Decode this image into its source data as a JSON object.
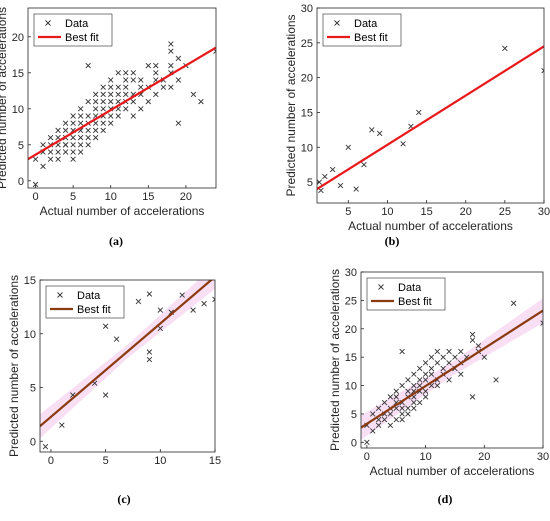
{
  "chart_data": [
    {
      "type": "scatter",
      "panel_label": "(a)",
      "xlabel": "Actual number of accelerations",
      "ylabel": "Predicted number of accelerations",
      "xlim": [
        -1,
        24
      ],
      "ylim": [
        -1,
        24
      ],
      "xticks": [
        0,
        5,
        10,
        15,
        20
      ],
      "yticks": [
        0,
        5,
        10,
        15,
        20
      ],
      "legend": {
        "position": "top-left",
        "entries": [
          "Data",
          "Best fit"
        ]
      },
      "line_color": "#e8191b",
      "band": false,
      "fit": {
        "x": [
          -1,
          24
        ],
        "y": [
          3.0,
          18.5
        ]
      },
      "series": [
        {
          "name": "Data",
          "marker": "x",
          "color": "#333333",
          "x": [
            0,
            0,
            1,
            1,
            1,
            2,
            2,
            2,
            2,
            3,
            3,
            3,
            3,
            3,
            4,
            4,
            4,
            4,
            4,
            4,
            5,
            5,
            5,
            5,
            5,
            5,
            5,
            6,
            6,
            6,
            6,
            6,
            6,
            6,
            7,
            7,
            7,
            7,
            7,
            7,
            7,
            8,
            8,
            8,
            8,
            8,
            8,
            8,
            9,
            9,
            9,
            9,
            9,
            9,
            9,
            10,
            10,
            10,
            10,
            10,
            10,
            10,
            11,
            11,
            11,
            11,
            11,
            11,
            12,
            12,
            12,
            12,
            12,
            12,
            13,
            13,
            13,
            13,
            13,
            14,
            14,
            14,
            14,
            15,
            15,
            15,
            16,
            16,
            16,
            16,
            17,
            17,
            18,
            18,
            18,
            18,
            18,
            19,
            19,
            19,
            20,
            21,
            22,
            24
          ],
          "y": [
            -0.5,
            3,
            2,
            4,
            5,
            3,
            4,
            6,
            5,
            4,
            5,
            6,
            7,
            3,
            5,
            6,
            7,
            4,
            5,
            8,
            6,
            7,
            5,
            9,
            4,
            8,
            3,
            5,
            7,
            8,
            10,
            6,
            4,
            9,
            6,
            9,
            7,
            11,
            5,
            8,
            16,
            7,
            10,
            8,
            12,
            6,
            9,
            11,
            8,
            11,
            9,
            13,
            10,
            7,
            12,
            9,
            12,
            10,
            14,
            11,
            8,
            13,
            10,
            13,
            11,
            15,
            9,
            12,
            11,
            14,
            10,
            12,
            15,
            13,
            12,
            14,
            11,
            9,
            15,
            13,
            10,
            14,
            12,
            11,
            13,
            16,
            14,
            12,
            16,
            15,
            13,
            14,
            16,
            19,
            18,
            15,
            13,
            8,
            17,
            14,
            16,
            12,
            11,
            18
          ]
        }
      ]
    },
    {
      "type": "scatter",
      "panel_label": "(b)",
      "xlabel": "Actual number of accelerations",
      "ylabel": "Predicted number of accelerations",
      "xlim": [
        1,
        30
      ],
      "ylim": [
        2,
        30
      ],
      "xticks": [
        5,
        10,
        15,
        20,
        25,
        30
      ],
      "yticks": [
        5,
        10,
        15,
        20,
        25,
        30
      ],
      "legend": {
        "position": "top-left",
        "entries": [
          "Data",
          "Best fit"
        ]
      },
      "line_color": "#e8191b",
      "band": false,
      "fit": {
        "x": [
          1,
          30
        ],
        "y": [
          4.0,
          24.5
        ]
      },
      "series": [
        {
          "name": "Data",
          "marker": "x",
          "color": "#333333",
          "x": [
            1.3,
            1.5,
            2,
            3,
            4,
            5,
            6,
            7,
            8,
            9,
            12,
            13,
            14,
            25,
            30
          ],
          "y": [
            5,
            3.8,
            5.8,
            6.8,
            4.5,
            10,
            4,
            7.5,
            12.5,
            12,
            10.5,
            13,
            15,
            24.2,
            21
          ]
        }
      ]
    },
    {
      "type": "scatter",
      "panel_label": "(c)",
      "xlabel": "",
      "ylabel": "Predicted number of accelerations",
      "xlim": [
        -1,
        15
      ],
      "ylim": [
        -1,
        15
      ],
      "xticks": [
        0,
        5,
        10,
        15
      ],
      "yticks": [
        0,
        5,
        10,
        15
      ],
      "legend": {
        "position": "top-left",
        "entries": [
          "Data",
          "Best fit"
        ]
      },
      "line_color": "#8b3a10",
      "band": true,
      "fit": {
        "x": [
          -1,
          15
        ],
        "y": [
          1.4,
          15.3
        ]
      },
      "series": [
        {
          "name": "Data",
          "marker": "x",
          "color": "#333333",
          "x": [
            -0.5,
            1,
            2,
            4,
            5,
            5,
            6,
            8,
            9,
            9,
            9,
            10,
            10,
            11,
            12,
            13,
            14,
            15
          ],
          "y": [
            -0.5,
            1.5,
            4.3,
            5.4,
            10.7,
            4.3,
            9.5,
            13,
            13.7,
            8.3,
            7.6,
            12.2,
            10.5,
            12,
            13.6,
            12.2,
            12.8,
            13.2
          ]
        }
      ]
    },
    {
      "type": "scatter",
      "panel_label": "(d)",
      "xlabel": "Actual number of accelerations",
      "ylabel": "Predicted number of accelerations",
      "xlim": [
        -1,
        30
      ],
      "ylim": [
        -1,
        30
      ],
      "xticks": [
        0,
        10,
        20,
        30
      ],
      "yticks": [
        0,
        5,
        10,
        15,
        20,
        25,
        30
      ],
      "legend": {
        "position": "top-left",
        "entries": [
          "Data",
          "Best fit"
        ]
      },
      "line_color": "#8b3a10",
      "band": true,
      "fit": {
        "x": [
          -1,
          30
        ],
        "y": [
          2.6,
          23.2
        ]
      },
      "series": [
        {
          "name": "Data",
          "marker": "x",
          "color": "#333333",
          "x": [
            0,
            0,
            1,
            1,
            2,
            2,
            2,
            3,
            3,
            3,
            4,
            4,
            4,
            4,
            5,
            5,
            5,
            5,
            5,
            6,
            6,
            6,
            6,
            6,
            6,
            7,
            7,
            7,
            7,
            7,
            8,
            8,
            8,
            8,
            8,
            8,
            9,
            9,
            9,
            9,
            9,
            10,
            10,
            10,
            10,
            10,
            11,
            11,
            11,
            11,
            12,
            12,
            12,
            12,
            13,
            13,
            13,
            14,
            14,
            14,
            15,
            15,
            16,
            16,
            16,
            17,
            18,
            18,
            18,
            19,
            19,
            20,
            22,
            25,
            30
          ],
          "y": [
            0,
            3,
            2,
            5,
            4,
            6,
            3,
            4,
            7,
            5,
            6,
            8,
            5,
            3,
            7,
            9,
            4,
            6,
            8,
            5,
            10,
            7,
            16,
            6,
            4,
            6,
            11,
            8,
            9,
            5,
            7,
            12,
            10,
            9,
            6,
            8,
            11,
            13,
            9,
            7,
            10,
            12,
            9,
            14,
            11,
            8,
            13,
            10,
            15,
            12,
            11,
            14,
            16,
            10,
            12,
            15,
            13,
            11,
            14,
            16,
            13,
            15,
            16,
            14,
            12,
            15,
            19,
            18,
            8,
            17,
            16,
            15,
            11,
            24.5,
            21
          ]
        }
      ]
    }
  ]
}
